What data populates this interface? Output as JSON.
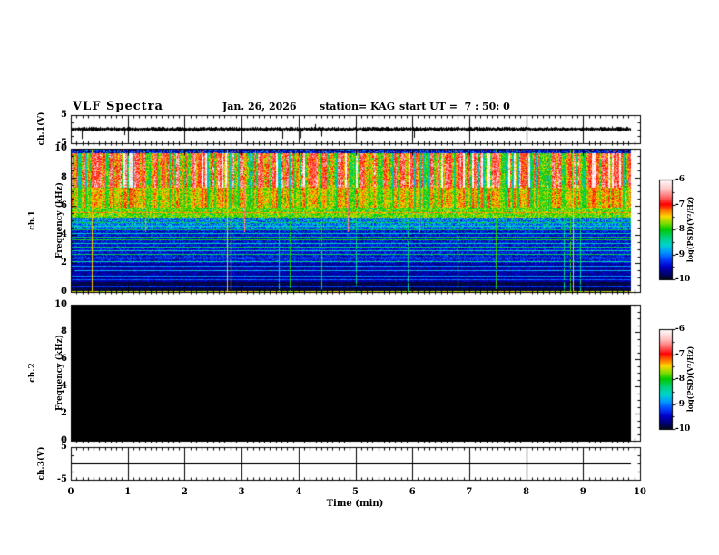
{
  "header": {
    "title": "VLF Spectra",
    "date": "Jan. 26, 2026",
    "station": "station= KAG",
    "start_ut": "start UT =  7 : 50: 0"
  },
  "x_axis": {
    "label": "Time (min)",
    "min": 0,
    "max": 10,
    "major_ticks": [
      0,
      1,
      2,
      3,
      4,
      5,
      6,
      7,
      8,
      9,
      10
    ],
    "minor_step": 0.1,
    "data_end_min": 9.84
  },
  "panels": {
    "ch1_wave": {
      "ylabel": "ch.1(V)",
      "ymin": -5,
      "ymax": 5,
      "ytick_labels": [
        5,
        -5
      ]
    },
    "ch1_spec": {
      "ylabel_ch": "ch.1",
      "ylabel_freq": "Frequency (kHz)",
      "ymin": 0,
      "ymax": 10,
      "ytick_labels": [
        10,
        8,
        6,
        4,
        2,
        0
      ]
    },
    "ch2_spec": {
      "ylabel_ch": "ch.2",
      "ylabel_freq": "Frequency (kHz)",
      "ymin": 0,
      "ymax": 10,
      "ytick_labels": [
        10,
        8,
        6,
        4,
        2,
        0
      ]
    },
    "ch3_wave": {
      "ylabel": "ch.3(V)",
      "ymin": -5,
      "ymax": 5,
      "ytick_labels": [
        5,
        -5
      ]
    }
  },
  "colorbars": [
    {
      "label": "log(PSD)(V²/Hz)",
      "tick_labels": [
        -6,
        -7,
        -8,
        -9,
        -10
      ],
      "max": -6,
      "min": -10
    },
    {
      "label": "log(PSD)(V²/Hz)",
      "tick_labels": [
        -6,
        -7,
        -8,
        -9,
        -10
      ],
      "max": -6,
      "min": -10
    }
  ],
  "colormap": {
    "stops": [
      [
        0,
        "#ffffff"
      ],
      [
        0.1,
        "#ffc4c4"
      ],
      [
        0.18,
        "#ff6666"
      ],
      [
        0.25,
        "#ff0000"
      ],
      [
        0.31,
        "#ff7300"
      ],
      [
        0.37,
        "#ffd800"
      ],
      [
        0.44,
        "#7ddd00"
      ],
      [
        0.5,
        "#00c800"
      ],
      [
        0.58,
        "#00d27d"
      ],
      [
        0.66,
        "#00d2d2"
      ],
      [
        0.73,
        "#0096ff"
      ],
      [
        0.8,
        "#0041ff"
      ],
      [
        0.87,
        "#0000c8"
      ],
      [
        0.94,
        "#000078"
      ],
      [
        1,
        "#000a1e"
      ]
    ]
  },
  "chart_data": [
    {
      "type": "line",
      "panel": "ch.1(V) waveform",
      "xlim": [
        0,
        10
      ],
      "ylim": [
        -5,
        5
      ],
      "baseline_v": 0,
      "noise_amplitude_v": 0.5,
      "spike_amplitude_v": 3,
      "description": "noisy trace centered at 0 V with dense small fuzz and sparse impulsive spikes to about ±3 V; data ends near 9.84 min"
    },
    {
      "type": "heatmap",
      "panel": "ch.1 spectrogram",
      "xlim": [
        0,
        9.84
      ],
      "ylim": [
        0,
        10
      ],
      "psd_range": [
        -10,
        -6
      ],
      "bands": [
        {
          "f_min": 9.7,
          "f_max": 10.0,
          "psd_log": -9.4,
          "texture": "dark-speckle"
        },
        {
          "f_min": 7.3,
          "f_max": 9.7,
          "psd_log": -6.6,
          "texture": "vertical-streaks"
        },
        {
          "f_min": 5.9,
          "f_max": 7.3,
          "psd_log": -7.6,
          "texture": "streaks-green"
        },
        {
          "f_min": 5.2,
          "f_max": 5.9,
          "psd_log": -7.8,
          "texture": "green-noise"
        },
        {
          "f_min": 4.4,
          "f_max": 5.2,
          "psd_log": -9.0,
          "texture": "blue-noise"
        },
        {
          "f_min": 2.0,
          "f_max": 4.4,
          "psd_log": -9.4,
          "texture": "dark-noise"
        },
        {
          "f_min": 0.7,
          "f_max": 2.0,
          "psd_log": -9.6,
          "texture": "very-dark"
        },
        {
          "f_min": 0.0,
          "f_max": 0.7,
          "psd_log": -9.9,
          "texture": "near-black"
        }
      ],
      "h_lines": [
        {
          "f": 5.55,
          "psd_log": -7.3
        },
        {
          "f": 5.1,
          "psd_log": -8.0
        },
        {
          "f": 4.85,
          "psd_log": -8.2
        },
        {
          "f": 4.6,
          "psd_log": -8.5
        },
        {
          "f": 4.35,
          "psd_log": -8.2
        },
        {
          "f": 4.1,
          "psd_log": -8.5
        },
        {
          "f": 3.85,
          "psd_log": -8.2
        },
        {
          "f": 3.6,
          "psd_log": -8.0
        },
        {
          "f": 3.35,
          "psd_log": -8.5
        },
        {
          "f": 3.1,
          "psd_log": -8.2
        },
        {
          "f": 2.85,
          "psd_log": -8.5
        },
        {
          "f": 2.6,
          "psd_log": -8.2
        },
        {
          "f": 2.35,
          "psd_log": -8.5
        },
        {
          "f": 2.1,
          "psd_log": -8.4
        },
        {
          "f": 1.8,
          "psd_log": -8.9
        },
        {
          "f": 1.45,
          "psd_log": -8.8
        },
        {
          "f": 1.1,
          "psd_log": -8.9
        },
        {
          "f": 0.8,
          "psd_log": -9.1
        },
        {
          "f": 0.35,
          "psd_log": -9.3
        },
        {
          "f": 0.03,
          "psd_log": -7.6
        }
      ],
      "v_lines_note": "dense thin vertical sferic lines (green/cyan, occasional yellow and red) crossing the band structure"
    },
    {
      "type": "heatmap",
      "panel": "ch.2 spectrogram",
      "xlim": [
        0,
        9.84
      ],
      "ylim": [
        0,
        10
      ],
      "psd_range": [
        -10,
        -6
      ],
      "uniform_psd_log": -10,
      "description": "entirely black (at or below -10), no signal recorded"
    },
    {
      "type": "line",
      "panel": "ch.3(V) waveform",
      "xlim": [
        0,
        10
      ],
      "ylim": [
        -5,
        5
      ],
      "baseline_v": 0,
      "description": "perfectly flat line at 0 V ending near 9.84 min"
    }
  ]
}
